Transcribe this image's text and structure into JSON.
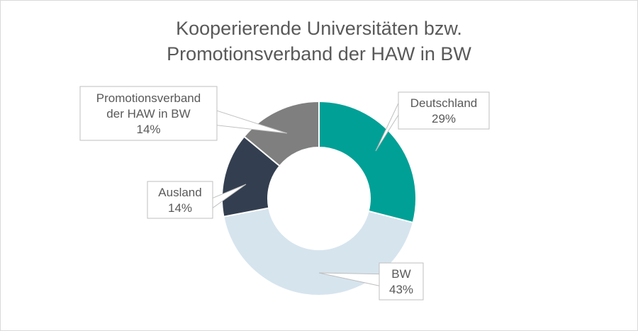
{
  "chart_data": {
    "type": "pie",
    "title_lines": [
      "Kooperierende Universitäten bzw.",
      "Promotionsverband der HAW in BW"
    ],
    "legend": "none",
    "slices": [
      {
        "label": "Deutschland",
        "label_lines": [
          "Deutschland"
        ],
        "value": 29,
        "value_label": "29%",
        "color": "#00a096"
      },
      {
        "label": "BW",
        "label_lines": [
          "BW"
        ],
        "value": 43,
        "value_label": "43%",
        "color": "#d6e4ee"
      },
      {
        "label": "Ausland",
        "label_lines": [
          "Ausland"
        ],
        "value": 14,
        "value_label": "14%",
        "color": "#333f50"
      },
      {
        "label": "Promotionsverband der HAW in BW",
        "label_lines": [
          "Promotionsverband",
          "der HAW in BW"
        ],
        "value": 14,
        "value_label": "14%",
        "color": "#7f7f7f"
      }
    ]
  }
}
